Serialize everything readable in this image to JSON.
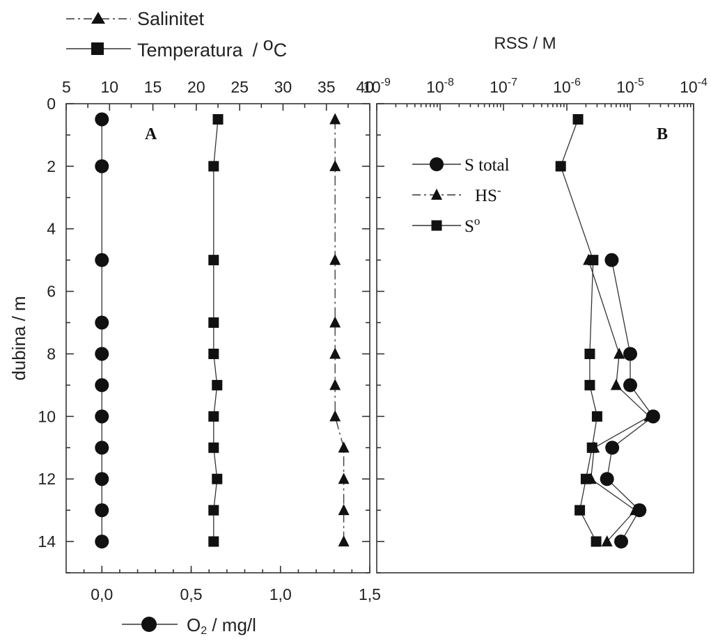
{
  "legend_top": {
    "salinity_label": "Salinitet",
    "temperature_label": "Temperatura",
    "temperature_unit": "/ ",
    "temperature_unit_o": "o",
    "temperature_unit_c": "C"
  },
  "chart_data": [
    {
      "panel": "A",
      "type": "line",
      "ylabel": "dubina / m",
      "ylim": [
        0,
        15
      ],
      "y_ticks": [
        0,
        2,
        4,
        6,
        8,
        10,
        12,
        14
      ],
      "top_axis": {
        "ticks": [
          "5",
          "10",
          "15",
          "20",
          "25",
          "30",
          "35",
          "40"
        ],
        "lim": [
          5,
          40
        ]
      },
      "bottom_axis": {
        "ticks": [
          "0,0",
          "0,5",
          "1,0",
          "1,5"
        ],
        "lim": [
          -0.2,
          1.5
        ],
        "label_pre": "O",
        "label_sub": "2",
        "label_post": " / mg/l"
      },
      "series": [
        {
          "name": "O2 / mg/l",
          "marker": "circle",
          "axis": "bottom",
          "points": [
            [
              0,
              0.5
            ],
            [
              0,
              2
            ],
            [
              0,
              5
            ],
            [
              0,
              7
            ],
            [
              0,
              8
            ],
            [
              0,
              9
            ],
            [
              0,
              10
            ],
            [
              0,
              11
            ],
            [
              0,
              12
            ],
            [
              0,
              13
            ],
            [
              0,
              14
            ]
          ]
        },
        {
          "name": "Temperatura",
          "marker": "square",
          "axis": "top",
          "points": [
            [
              22.5,
              0.5
            ],
            [
              22,
              2
            ],
            [
              22,
              5
            ],
            [
              22,
              7
            ],
            [
              22,
              8
            ],
            [
              22.4,
              9
            ],
            [
              22,
              10
            ],
            [
              22,
              11
            ],
            [
              22.4,
              12
            ],
            [
              22,
              13
            ],
            [
              22,
              14
            ]
          ]
        },
        {
          "name": "Salinitet",
          "marker": "triangle",
          "axis": "top",
          "dashed": true,
          "points": [
            [
              36,
              0.5
            ],
            [
              36,
              2
            ],
            [
              36,
              5
            ],
            [
              36,
              7
            ],
            [
              36,
              8
            ],
            [
              36,
              9
            ],
            [
              36,
              10
            ],
            [
              37,
              11
            ],
            [
              37,
              12
            ],
            [
              37,
              13
            ],
            [
              37,
              14
            ]
          ]
        }
      ],
      "panel_label": "A"
    },
    {
      "panel": "B",
      "type": "line",
      "title": "RSS / M",
      "x_scale": "log",
      "top_axis": {
        "lim_exp": [
          -9,
          -4
        ],
        "ticks": [
          {
            "base": "10",
            "exp": "-9"
          },
          {
            "base": "10",
            "exp": "-8"
          },
          {
            "base": "10",
            "exp": "-7"
          },
          {
            "base": "10",
            "exp": "-6"
          },
          {
            "base": "10",
            "exp": "-5"
          },
          {
            "base": "10",
            "exp": "-4"
          }
        ]
      },
      "panel_label": "B",
      "legend": [
        {
          "label_pre": "S total",
          "label_sup": "",
          "marker": "circle"
        },
        {
          "label_pre": "HS",
          "label_sup": "-",
          "marker": "triangle",
          "dashed": true
        },
        {
          "label_pre": "S",
          "label_sup": "o",
          "marker": "square"
        }
      ],
      "series": [
        {
          "name": "S total",
          "marker": "circle",
          "points": [
            [
              5.1e-06,
              5
            ],
            [
              1e-05,
              8
            ],
            [
              1e-05,
              9
            ],
            [
              2.3e-05,
              10
            ],
            [
              5.2e-06,
              11
            ],
            [
              4.3e-06,
              12
            ],
            [
              1.4e-05,
              13
            ],
            [
              7.2e-06,
              14
            ]
          ]
        },
        {
          "name": "HS-",
          "marker": "triangle",
          "points": [
            [
              2.2e-06,
              5
            ],
            [
              6.7e-06,
              8
            ],
            [
              6e-06,
              9
            ],
            [
              2e-05,
              10
            ],
            [
              2.7e-06,
              11
            ],
            [
              2.4e-06,
              12
            ],
            [
              1.2e-05,
              13
            ],
            [
              4.3e-06,
              14
            ]
          ]
        },
        {
          "name": "So",
          "marker": "square",
          "points": [
            [
              1.5e-06,
              0.5
            ],
            [
              8e-07,
              2
            ],
            [
              2.6e-06,
              5
            ],
            [
              2.3e-06,
              8
            ],
            [
              2.3e-06,
              9
            ],
            [
              3e-06,
              10
            ],
            [
              2.5e-06,
              11
            ],
            [
              2e-06,
              12
            ],
            [
              1.6e-06,
              13
            ],
            [
              2.9e-06,
              14
            ]
          ]
        }
      ]
    }
  ]
}
